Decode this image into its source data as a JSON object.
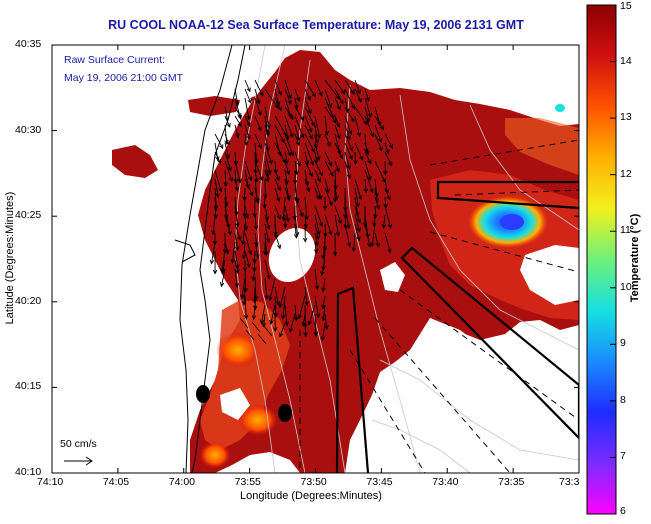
{
  "title": "RU COOL  NOAA-12  Sea Surface Temperature:  May 19, 2006 2131 GMT",
  "legend": {
    "line1": "Raw Surface Current:",
    "line2": "May 19, 2006 21:00 GMT"
  },
  "scale_label": "50 cm/s",
  "xlabel": "Longitude (Degrees:Minutes)",
  "ylabel": "Latitude (Degrees:Minutes)",
  "x_ticks": [
    "74:10",
    "74:05",
    "74:00",
    "73:55",
    "73:50",
    "73:45",
    "73:40",
    "73:35",
    "73:3"
  ],
  "y_ticks": [
    "40:35",
    "40:30",
    "40:25",
    "40:20",
    "40:15",
    "40:10"
  ],
  "colorbar": {
    "label": "Temperature (°C)",
    "ticks": [
      "15",
      "14",
      "13",
      "12",
      "11",
      "10",
      "9",
      "8",
      "7",
      "6"
    ],
    "min": 6,
    "max": 15,
    "colors": [
      "#ff00ff",
      "#7a2cff",
      "#1e2cff",
      "#1a8cff",
      "#16e0e0",
      "#6ff07a",
      "#f2f01e",
      "#ffb000",
      "#ff5200",
      "#d01010",
      "#8c0000"
    ]
  },
  "map": {
    "ocean_color": "#a90f0f",
    "land_color": "#ffffff",
    "features": [
      "coastline",
      "bathymetry-contours",
      "current-vectors",
      "shipping-lanes",
      "buoys"
    ]
  }
}
